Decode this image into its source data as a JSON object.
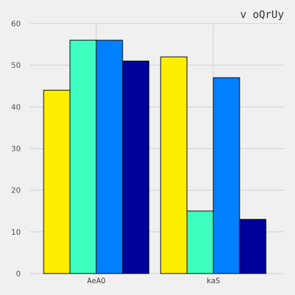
{
  "chart_data": {
    "type": "bar",
    "title": "v oQrUy",
    "xlabel": "",
    "ylabel": "",
    "categories": [
      "AeAO",
      "kaS"
    ],
    "series": [
      {
        "values": [
          44,
          52
        ],
        "color": "#ffee00"
      },
      {
        "values": [
          56,
          15
        ],
        "color": "#3dffc0"
      },
      {
        "values": [
          56,
          47
        ],
        "color": "#0080ff"
      },
      {
        "values": [
          51,
          13
        ],
        "color": "#00009a"
      }
    ],
    "ylim": [
      0,
      60
    ],
    "yticks": [
      "0",
      "10",
      "20",
      "30",
      "40",
      "50",
      "60"
    ],
    "grid": true,
    "legend": "none"
  },
  "colors": {
    "background": "#f0f0f0",
    "grid": "#d0d0d0",
    "bar_stroke": "#000000"
  }
}
